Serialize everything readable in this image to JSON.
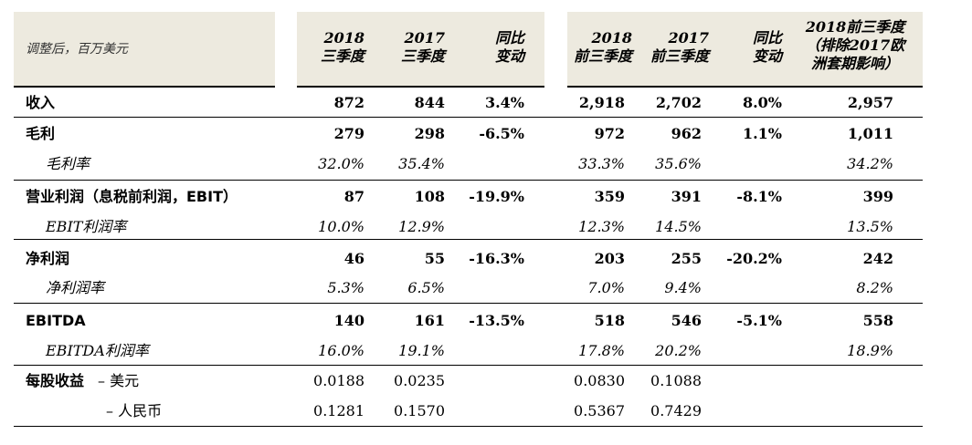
{
  "header": {
    "unit_label": "调整后，百万美元",
    "q3_2018": [
      "2018",
      "三季度"
    ],
    "q3_2017": [
      "2017",
      "三季度"
    ],
    "yoy_q": [
      "同比",
      "变动"
    ],
    "ytd_2018": [
      "2018",
      "前三季度"
    ],
    "ytd_2017": [
      "2017",
      "前三季度"
    ],
    "yoy_ytd": [
      "同比",
      "变动"
    ],
    "ytd_2018_excl": [
      "2018前三季度",
      "（排除2017欧",
      "洲套期影响）"
    ]
  },
  "rows": [
    {
      "label": "收入",
      "q18": "872",
      "q17": "844",
      "qyoy": "3.4%",
      "y18": "2,918",
      "y17": "2,702",
      "yyoy": "8.0%",
      "yex": "2,957"
    },
    {
      "label": "毛利",
      "q18": "279",
      "q17": "298",
      "qyoy": "-6.5%",
      "y18": "972",
      "y17": "962",
      "yyoy": "1.1%",
      "yex": "1,011"
    },
    {
      "label": "毛利率",
      "q18": "32.0%",
      "q17": "35.4%",
      "qyoy": "",
      "y18": "33.3%",
      "y17": "35.6%",
      "yyoy": "",
      "yex": "34.2%"
    },
    {
      "label": "营业利润（息税前利润，EBIT）",
      "q18": "87",
      "q17": "108",
      "qyoy": "-19.9%",
      "y18": "359",
      "y17": "391",
      "yyoy": "-8.1%",
      "yex": "399"
    },
    {
      "label": "EBIT利润率",
      "q18": "10.0%",
      "q17": "12.9%",
      "qyoy": "",
      "y18": "12.3%",
      "y17": "14.5%",
      "yyoy": "",
      "yex": "13.5%"
    },
    {
      "label": "净利润",
      "q18": "46",
      "q17": "55",
      "qyoy": "-16.3%",
      "y18": "203",
      "y17": "255",
      "yyoy": "-20.2%",
      "yex": "242"
    },
    {
      "label": "净利润率",
      "q18": "5.3%",
      "q17": "6.5%",
      "qyoy": "",
      "y18": "7.0%",
      "y17": "9.4%",
      "yyoy": "",
      "yex": "8.2%"
    },
    {
      "label": "EBITDA",
      "q18": "140",
      "q17": "161",
      "qyoy": "-13.5%",
      "y18": "518",
      "y17": "546",
      "yyoy": "-5.1%",
      "yex": "558"
    },
    {
      "label": "EBITDA利润率",
      "q18": "16.0%",
      "q17": "19.1%",
      "qyoy": "",
      "y18": "17.8%",
      "y17": "20.2%",
      "yyoy": "",
      "yex": "18.9%"
    }
  ],
  "eps": {
    "label": "每股收益",
    "usd_label": "– 美元",
    "rmb_label": "– 人民币",
    "usd": {
      "q18": "0.0188",
      "q17": "0.0235",
      "y18": "0.0830",
      "y17": "0.1088"
    },
    "rmb": {
      "q18": "0.1281",
      "q17": "0.1570",
      "y18": "0.5367",
      "y17": "0.7429"
    }
  }
}
